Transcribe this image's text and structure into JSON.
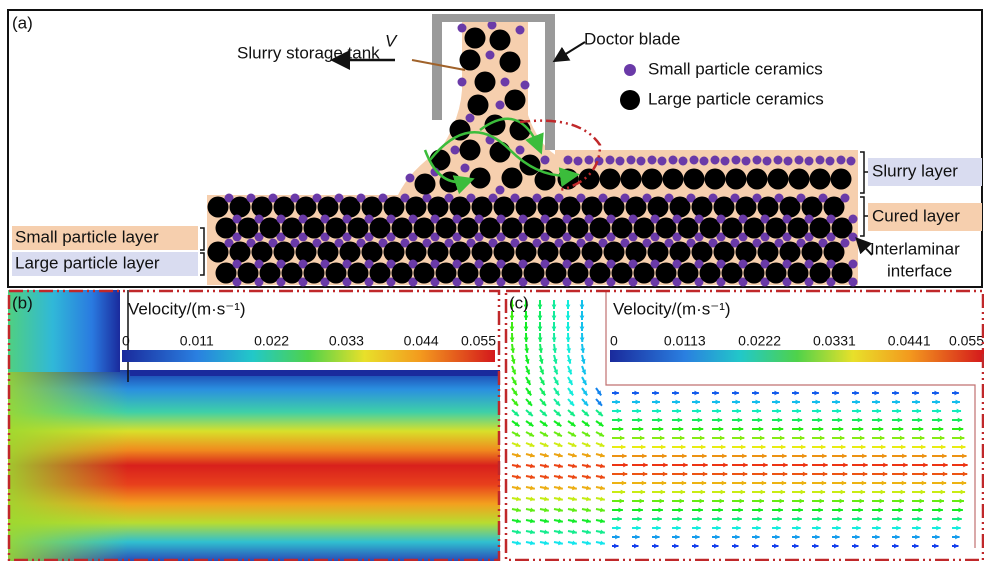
{
  "panel_a": {
    "label": "(a)",
    "velocity_symbol": "V",
    "slurry_storage_tank": "Slurry storage tank",
    "doctor_blade": "Doctor blade",
    "legend_small": "Small particle ceramics",
    "legend_large": "Large particle ceramics",
    "slurry_layer": "Slurry layer",
    "cured_layer": "Cured layer",
    "interlaminar_line1": "Interlaminar",
    "interlaminar_line2": "interface",
    "small_particle_layer": "Small particle layer",
    "large_particle_layer": "Large particle layer"
  },
  "panel_b": {
    "label": "(b)",
    "colorbar_title": "Velocity/(m·s⁻¹)",
    "colorbar_ticks": [
      "0",
      "0.011",
      "0.022",
      "0.033",
      "0.044",
      "0.055"
    ]
  },
  "panel_c": {
    "label": "(c)",
    "colorbar_title": "Velocity/(m·s⁻¹)",
    "colorbar_ticks": [
      "0",
      "0.0113",
      "0.0222",
      "0.0331",
      "0.0441",
      "0.055"
    ]
  }
}
